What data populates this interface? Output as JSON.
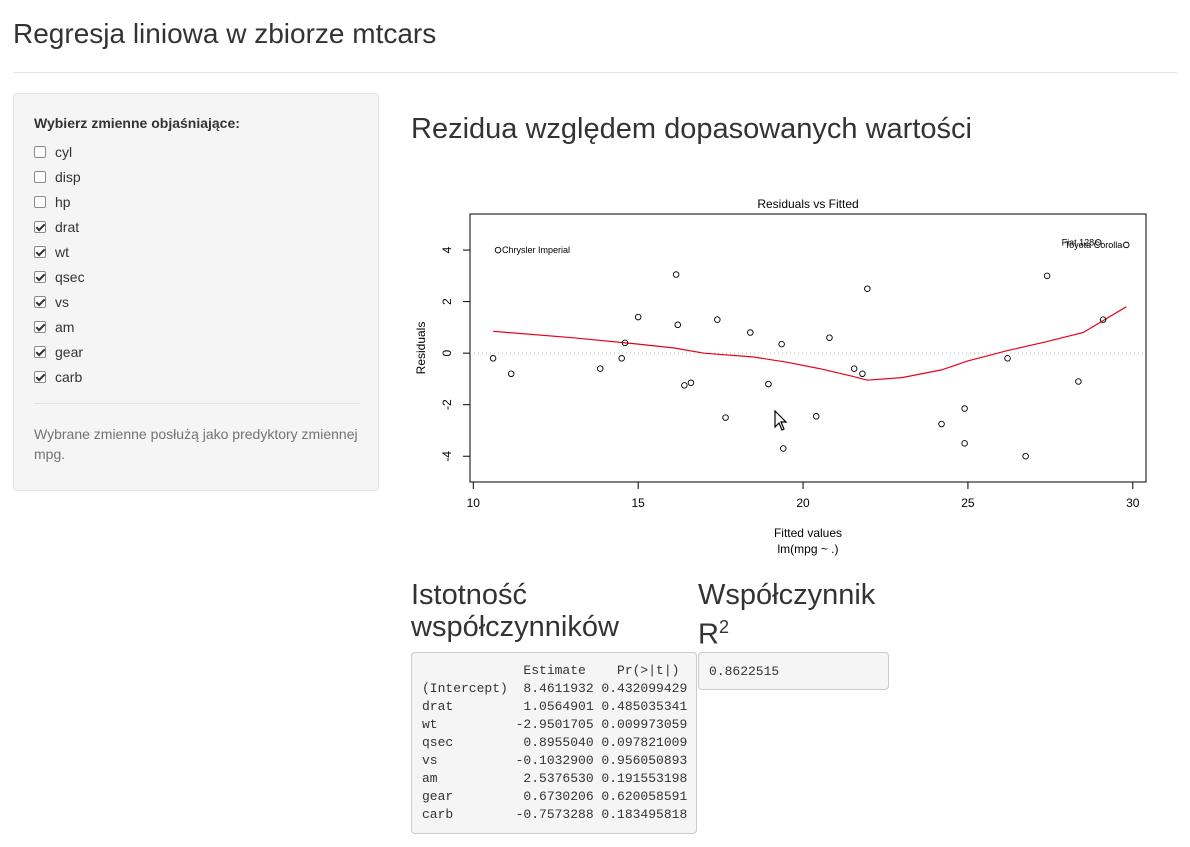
{
  "page": {
    "title": "Regresja liniowa w zbiorze mtcars"
  },
  "sidebar": {
    "label": "Wybierz zmienne objaśniające:",
    "checkboxes": [
      {
        "label": "cyl",
        "checked": false
      },
      {
        "label": "disp",
        "checked": false
      },
      {
        "label": "hp",
        "checked": false
      },
      {
        "label": "drat",
        "checked": true
      },
      {
        "label": "wt",
        "checked": true
      },
      {
        "label": "qsec",
        "checked": true
      },
      {
        "label": "vs",
        "checked": true
      },
      {
        "label": "am",
        "checked": true
      },
      {
        "label": "gear",
        "checked": true
      },
      {
        "label": "carb",
        "checked": true
      }
    ],
    "help_text": "Wybrane zmienne posłużą jako predyktory zmiennej mpg."
  },
  "main": {
    "plot_heading": "Rezidua względem dopasowanych wartości",
    "coef_heading": "Istotność współczynników",
    "r2_heading_prefix": "Współczynnik R",
    "r2_heading_sup": "2",
    "coef_table": [
      "             Estimate    Pr(>|t|)",
      "(Intercept)  8.4611932 0.432099429",
      "drat         1.0564901 0.485035341",
      "wt          -2.9501705 0.009973059",
      "qsec         0.8955040 0.097821009",
      "vs          -0.1032900 0.956050893",
      "am           2.5376530 0.191553198",
      "gear         0.6730206 0.620058591",
      "carb        -0.7573288 0.183495818"
    ],
    "r2_value": "0.8622515"
  },
  "chart_data": {
    "type": "scatter",
    "title": "Residuals vs Fitted",
    "xlabel": "Fitted values",
    "xlabel2": "lm(mpg ~ .)",
    "ylabel": "Residuals",
    "xlim": [
      9.9,
      30.4
    ],
    "ylim": [
      -5.0,
      5.4
    ],
    "x_ticks": [
      10,
      15,
      20,
      25,
      30
    ],
    "y_ticks": [
      -4,
      -2,
      0,
      2,
      4
    ],
    "grid": false,
    "colors": {
      "points": "#000000",
      "smooth": "#e8001c",
      "zero_line": "#bbbbbb"
    },
    "points": [
      [
        10.6,
        -0.2
      ],
      [
        11.15,
        -0.8
      ],
      [
        10.75,
        4.0
      ],
      [
        13.85,
        -0.6
      ],
      [
        14.5,
        -0.2
      ],
      [
        14.6,
        0.4
      ],
      [
        15.0,
        1.4
      ],
      [
        16.15,
        3.05
      ],
      [
        16.2,
        1.1
      ],
      [
        16.4,
        -1.25
      ],
      [
        16.6,
        -1.15
      ],
      [
        17.4,
        1.3
      ],
      [
        17.65,
        -2.5
      ],
      [
        18.4,
        0.8
      ],
      [
        18.95,
        -1.2
      ],
      [
        19.35,
        0.35
      ],
      [
        19.4,
        -3.7
      ],
      [
        20.4,
        -2.45
      ],
      [
        20.8,
        0.6
      ],
      [
        21.55,
        -0.6
      ],
      [
        21.8,
        -0.8
      ],
      [
        21.95,
        2.5
      ],
      [
        24.2,
        -2.75
      ],
      [
        24.9,
        -2.15
      ],
      [
        24.9,
        -3.5
      ],
      [
        26.2,
        -0.2
      ],
      [
        26.75,
        -4.0
      ],
      [
        27.4,
        3.0
      ],
      [
        28.35,
        -1.1
      ],
      [
        28.95,
        4.3
      ],
      [
        29.1,
        1.3
      ],
      [
        29.8,
        4.2
      ]
    ],
    "smooth": [
      [
        10.6,
        0.85
      ],
      [
        13.0,
        0.6
      ],
      [
        15.0,
        0.35
      ],
      [
        16.1,
        0.2
      ],
      [
        17.0,
        0.0
      ],
      [
        18.5,
        -0.15
      ],
      [
        19.5,
        -0.35
      ],
      [
        20.5,
        -0.6
      ],
      [
        21.5,
        -0.9
      ],
      [
        21.95,
        -1.05
      ],
      [
        23.0,
        -0.95
      ],
      [
        24.2,
        -0.65
      ],
      [
        25.0,
        -0.3
      ],
      [
        26.2,
        0.1
      ],
      [
        27.4,
        0.45
      ],
      [
        28.5,
        0.8
      ],
      [
        29.8,
        1.8
      ]
    ],
    "labels": [
      {
        "text": "Chrysler Imperial",
        "x": 10.75,
        "y": 4.0
      },
      {
        "text": "Fiat 128",
        "x": 28.95,
        "y": 4.3
      },
      {
        "text": "Toyota Corolla",
        "x": 29.8,
        "y": 4.2
      }
    ]
  }
}
